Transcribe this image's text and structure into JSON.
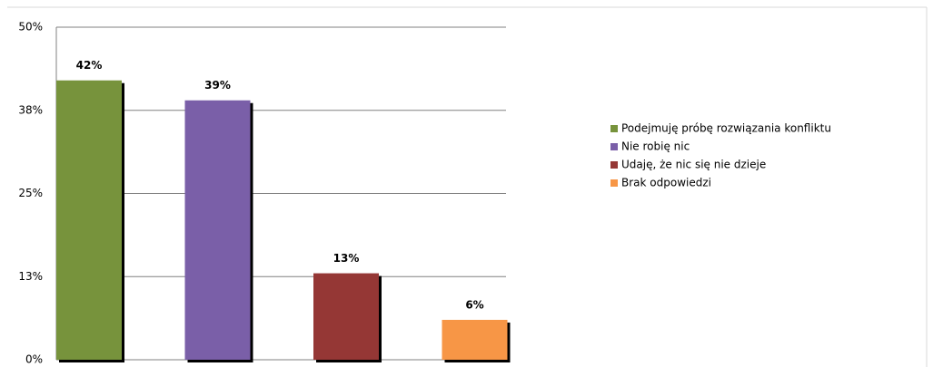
{
  "chart_data": {
    "type": "bar",
    "categories": [
      "Podejmuję próbę rozwiązania konfliktu",
      "Nie robię nic",
      "Udaję, że nic się nie dzieje",
      "Brak odpowiedzi"
    ],
    "values": [
      42,
      39,
      13,
      6
    ],
    "value_labels": [
      "42%",
      "39%",
      "13%",
      "6%"
    ],
    "colors": [
      "#77933c",
      "#7a5fa8",
      "#953735",
      "#f79646"
    ],
    "ylim": [
      0,
      50
    ],
    "yticks": [
      {
        "value": 0,
        "label": "0%"
      },
      {
        "value": 12.5,
        "label": "13%"
      },
      {
        "value": 25,
        "label": "25%"
      },
      {
        "value": 37.5,
        "label": "38%"
      },
      {
        "value": 50,
        "label": "50%"
      }
    ],
    "grid": true,
    "legend": "right"
  }
}
